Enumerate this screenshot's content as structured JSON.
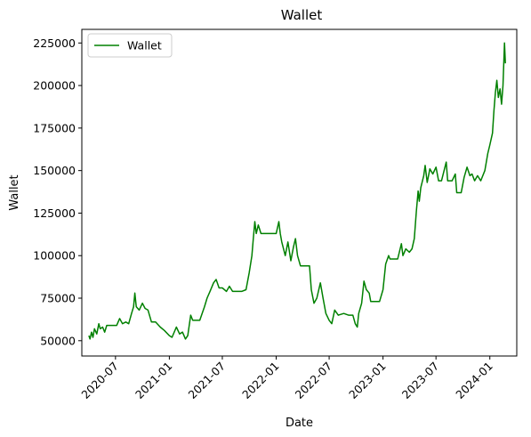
{
  "chart_data": {
    "type": "line",
    "title": "Wallet",
    "xlabel": "Date",
    "ylabel": "Wallet",
    "legend": {
      "placement": "top-left",
      "entries": [
        "Wallet"
      ]
    },
    "grid": false,
    "colors": {
      "series": "#008000",
      "axes": "#000000",
      "background": "#ffffff"
    },
    "xlim": [
      "2020-03-08",
      "2024-04-02"
    ],
    "ylim": [
      41000,
      233000
    ],
    "x_ticks": [
      {
        "date": "2020-07-01",
        "label": "2020-07"
      },
      {
        "date": "2021-01-01",
        "label": "2021-01"
      },
      {
        "date": "2021-07-01",
        "label": "2021-07"
      },
      {
        "date": "2022-01-01",
        "label": "2022-01"
      },
      {
        "date": "2022-07-01",
        "label": "2022-07"
      },
      {
        "date": "2023-01-01",
        "label": "2023-01"
      },
      {
        "date": "2023-07-01",
        "label": "2023-07"
      },
      {
        "date": "2024-01-01",
        "label": "2024-01"
      }
    ],
    "y_ticks": [
      {
        "value": 50000,
        "label": "50000"
      },
      {
        "value": 75000,
        "label": "75000"
      },
      {
        "value": 100000,
        "label": "100000"
      },
      {
        "value": 125000,
        "label": "125000"
      },
      {
        "value": 150000,
        "label": "150000"
      },
      {
        "value": 175000,
        "label": "175000"
      },
      {
        "value": 200000,
        "label": "200000"
      },
      {
        "value": 225000,
        "label": "225000"
      }
    ],
    "series": [
      {
        "name": "Wallet",
        "points": [
          [
            "2020-04-01",
            53000
          ],
          [
            "2020-04-05",
            51000
          ],
          [
            "2020-04-10",
            55000
          ],
          [
            "2020-04-15",
            52000
          ],
          [
            "2020-04-20",
            57000
          ],
          [
            "2020-04-28",
            54000
          ],
          [
            "2020-05-05",
            60000
          ],
          [
            "2020-05-10",
            57000
          ],
          [
            "2020-05-18",
            58000
          ],
          [
            "2020-05-25",
            55000
          ],
          [
            "2020-06-01",
            59000
          ],
          [
            "2020-06-10",
            59000
          ],
          [
            "2020-06-25",
            59000
          ],
          [
            "2020-07-05",
            59000
          ],
          [
            "2020-07-15",
            63000
          ],
          [
            "2020-07-25",
            60000
          ],
          [
            "2020-08-05",
            61000
          ],
          [
            "2020-08-15",
            60000
          ],
          [
            "2020-08-25",
            66000
          ],
          [
            "2020-09-01",
            70000
          ],
          [
            "2020-09-05",
            78000
          ],
          [
            "2020-09-10",
            70000
          ],
          [
            "2020-09-20",
            68000
          ],
          [
            "2020-10-01",
            72000
          ],
          [
            "2020-10-10",
            69000
          ],
          [
            "2020-10-20",
            68000
          ],
          [
            "2020-11-01",
            61000
          ],
          [
            "2020-11-15",
            61000
          ],
          [
            "2020-12-01",
            58000
          ],
          [
            "2020-12-15",
            56000
          ],
          [
            "2021-01-01",
            53000
          ],
          [
            "2021-01-10",
            52000
          ],
          [
            "2021-01-25",
            58000
          ],
          [
            "2021-02-05",
            54000
          ],
          [
            "2021-02-15",
            55000
          ],
          [
            "2021-02-25",
            51000
          ],
          [
            "2021-03-05",
            53000
          ],
          [
            "2021-03-15",
            65000
          ],
          [
            "2021-03-22",
            62000
          ],
          [
            "2021-04-01",
            62000
          ],
          [
            "2021-04-15",
            62000
          ],
          [
            "2021-05-01",
            70000
          ],
          [
            "2021-05-10",
            75000
          ],
          [
            "2021-05-20",
            79000
          ],
          [
            "2021-06-01",
            84000
          ],
          [
            "2021-06-10",
            86000
          ],
          [
            "2021-06-20",
            81000
          ],
          [
            "2021-07-01",
            81000
          ],
          [
            "2021-07-15",
            79000
          ],
          [
            "2021-07-25",
            82000
          ],
          [
            "2021-08-05",
            79000
          ],
          [
            "2021-08-20",
            79000
          ],
          [
            "2021-09-05",
            79000
          ],
          [
            "2021-09-20",
            80000
          ],
          [
            "2021-10-01",
            90000
          ],
          [
            "2021-10-10",
            100000
          ],
          [
            "2021-10-15",
            110000
          ],
          [
            "2021-10-20",
            120000
          ],
          [
            "2021-10-25",
            113000
          ],
          [
            "2021-11-01",
            118000
          ],
          [
            "2021-11-10",
            113000
          ],
          [
            "2021-12-01",
            113000
          ],
          [
            "2022-01-01",
            113000
          ],
          [
            "2022-01-10",
            120000
          ],
          [
            "2022-01-15",
            113000
          ],
          [
            "2022-01-20",
            108000
          ],
          [
            "2022-02-01",
            100000
          ],
          [
            "2022-02-10",
            108000
          ],
          [
            "2022-02-20",
            97000
          ],
          [
            "2022-03-01",
            105000
          ],
          [
            "2022-03-08",
            110000
          ],
          [
            "2022-03-15",
            100000
          ],
          [
            "2022-03-25",
            94000
          ],
          [
            "2022-04-10",
            94000
          ],
          [
            "2022-04-25",
            94000
          ],
          [
            "2022-05-01",
            80000
          ],
          [
            "2022-05-10",
            72000
          ],
          [
            "2022-05-20",
            75000
          ],
          [
            "2022-06-01",
            84000
          ],
          [
            "2022-06-10",
            75000
          ],
          [
            "2022-06-20",
            66000
          ],
          [
            "2022-07-01",
            62000
          ],
          [
            "2022-07-10",
            60000
          ],
          [
            "2022-07-20",
            68000
          ],
          [
            "2022-08-01",
            65000
          ],
          [
            "2022-08-20",
            66000
          ],
          [
            "2022-09-05",
            65000
          ],
          [
            "2022-09-20",
            65000
          ],
          [
            "2022-09-28",
            60000
          ],
          [
            "2022-10-05",
            58000
          ],
          [
            "2022-10-10",
            66000
          ],
          [
            "2022-10-20",
            72000
          ],
          [
            "2022-10-28",
            85000
          ],
          [
            "2022-11-05",
            80000
          ],
          [
            "2022-11-15",
            78000
          ],
          [
            "2022-11-20",
            73000
          ],
          [
            "2022-12-01",
            73000
          ],
          [
            "2022-12-20",
            73000
          ],
          [
            "2023-01-01",
            80000
          ],
          [
            "2023-01-10",
            95000
          ],
          [
            "2023-01-20",
            100000
          ],
          [
            "2023-01-25",
            98000
          ],
          [
            "2023-02-05",
            98000
          ],
          [
            "2023-02-20",
            98000
          ],
          [
            "2023-03-05",
            107000
          ],
          [
            "2023-03-10",
            100000
          ],
          [
            "2023-03-20",
            104000
          ],
          [
            "2023-04-01",
            102000
          ],
          [
            "2023-04-10",
            104000
          ],
          [
            "2023-04-18",
            110000
          ],
          [
            "2023-04-25",
            126000
          ],
          [
            "2023-05-01",
            138000
          ],
          [
            "2023-05-05",
            132000
          ],
          [
            "2023-05-10",
            140000
          ],
          [
            "2023-05-20",
            147000
          ],
          [
            "2023-05-25",
            153000
          ],
          [
            "2023-06-01",
            143000
          ],
          [
            "2023-06-10",
            151000
          ],
          [
            "2023-06-20",
            148000
          ],
          [
            "2023-07-01",
            152000
          ],
          [
            "2023-07-10",
            144000
          ],
          [
            "2023-07-20",
            144000
          ],
          [
            "2023-08-05",
            155000
          ],
          [
            "2023-08-10",
            144000
          ],
          [
            "2023-08-25",
            144000
          ],
          [
            "2023-09-05",
            148000
          ],
          [
            "2023-09-10",
            137000
          ],
          [
            "2023-09-25",
            137000
          ],
          [
            "2023-10-05",
            146000
          ],
          [
            "2023-10-15",
            152000
          ],
          [
            "2023-10-25",
            147000
          ],
          [
            "2023-11-01",
            148000
          ],
          [
            "2023-11-10",
            144000
          ],
          [
            "2023-11-20",
            147000
          ],
          [
            "2023-12-01",
            144000
          ],
          [
            "2023-12-15",
            150000
          ],
          [
            "2023-12-25",
            160000
          ],
          [
            "2024-01-01",
            165000
          ],
          [
            "2024-01-10",
            172000
          ],
          [
            "2024-01-15",
            185000
          ],
          [
            "2024-01-20",
            196000
          ],
          [
            "2024-01-25",
            203000
          ],
          [
            "2024-01-30",
            193000
          ],
          [
            "2024-02-05",
            198000
          ],
          [
            "2024-02-10",
            189000
          ],
          [
            "2024-02-15",
            200000
          ],
          [
            "2024-02-20",
            225000
          ],
          [
            "2024-02-23",
            213000
          ]
        ]
      }
    ]
  }
}
